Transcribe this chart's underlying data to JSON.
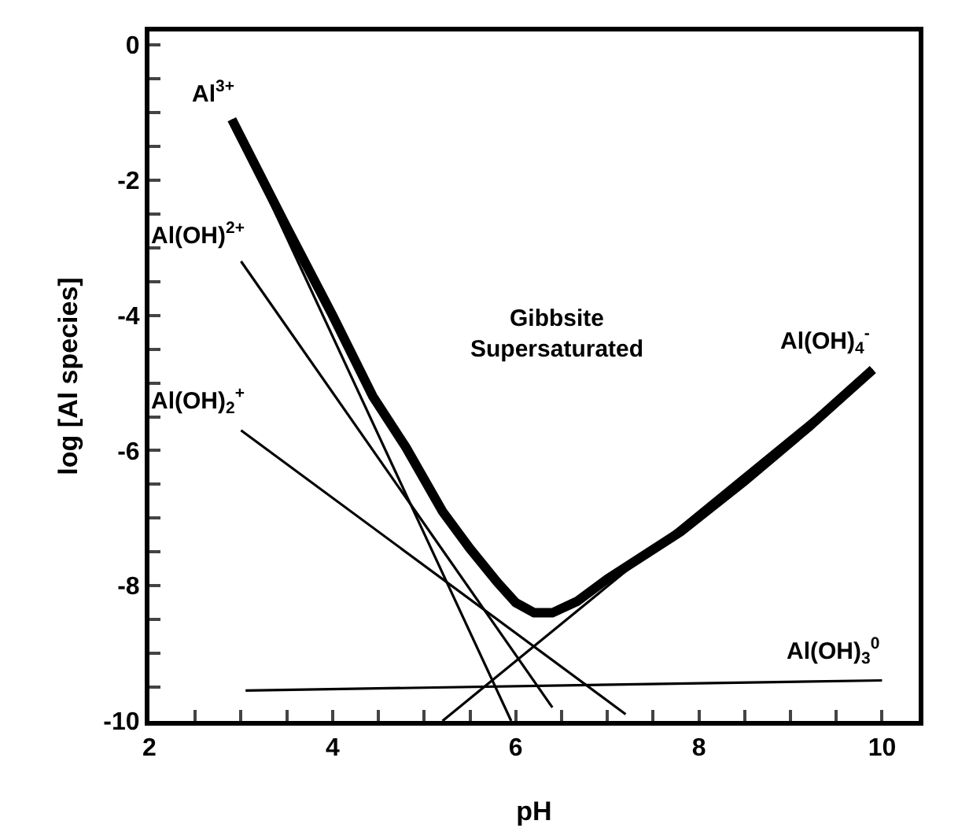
{
  "chart_data": {
    "type": "line",
    "xlabel": "pH",
    "ylabel": "log [Al species]",
    "xlim": [
      2,
      10.4
    ],
    "ylim": [
      -10,
      0.2
    ],
    "xticks": [
      2,
      {
        "value": 2.5,
        "label": null
      },
      {
        "value": 3,
        "label": null
      },
      {
        "value": 3.5,
        "label": null
      },
      4,
      {
        "value": 4.5,
        "label": null
      },
      {
        "value": 5,
        "label": null
      },
      {
        "value": 5.5,
        "label": null
      },
      6,
      {
        "value": 6.5,
        "label": null
      },
      {
        "value": 7,
        "label": null
      },
      {
        "value": 7.5,
        "label": null
      },
      8,
      {
        "value": 8.5,
        "label": null
      },
      {
        "value": 9,
        "label": null
      },
      {
        "value": 9.5,
        "label": null
      },
      10
    ],
    "yticks": [
      -10,
      {
        "value": -9.5,
        "label": null
      },
      {
        "value": -9,
        "label": null
      },
      {
        "value": -8.5,
        "label": null
      },
      -8,
      {
        "value": -7.5,
        "label": null
      },
      {
        "value": -7,
        "label": null
      },
      {
        "value": -6.5,
        "label": null
      },
      -6,
      {
        "value": -5.5,
        "label": null
      },
      {
        "value": -5,
        "label": null
      },
      {
        "value": -4.5,
        "label": null
      },
      -4,
      {
        "value": -3.5,
        "label": null
      },
      {
        "value": -3,
        "label": null
      },
      {
        "value": -2.5,
        "label": null
      },
      -2,
      {
        "value": -1.5,
        "label": null
      },
      {
        "value": -1,
        "label": null
      },
      {
        "value": -0.5,
        "label": null
      },
      0
    ],
    "grid": false,
    "legend": false,
    "marker": "none",
    "line_style": "solid",
    "series": [
      {
        "color": "#000000",
        "x": [
          2.9,
          3.5,
          4,
          4.44,
          4.8,
          5.2,
          5.5,
          5.8,
          6.0,
          6.2,
          6.4,
          6.67,
          7,
          7.8,
          8.5,
          9.2,
          9.9
        ],
        "values": [
          -1.1,
          -2.7,
          -4.0,
          -5.2,
          -5.95,
          -6.9,
          -7.45,
          -7.95,
          -8.25,
          -8.4,
          -8.4,
          -8.23,
          -7.9,
          -7.2,
          -6.45,
          -5.65,
          -4.8
        ]
      },
      {
        "name": "Al$^{3+}$",
        "color": "#000000",
        "x": [
          2.9,
          5.95
        ],
        "values": [
          -1.1,
          -10
        ]
      },
      {
        "name": "Al(OH)$^{2+}$",
        "color": "#000000",
        "x": [
          3.0,
          6.4
        ],
        "values": [
          -3.2,
          -9.8
        ]
      },
      {
        "name": "Al(OH)$_{2}$$^{+}$",
        "color": "#000000",
        "x": [
          3.0,
          7.2
        ],
        "values": [
          -5.7,
          -9.9
        ]
      },
      {
        "name": "Al(OH)$_{3}$$^{0}$",
        "color": "#000000",
        "x": [
          3.05,
          10
        ],
        "values": [
          -9.55,
          -9.4
        ]
      },
      {
        "name": "Al(OH)$_{4}$$^{-}$",
        "color": "#000000",
        "x": [
          5.2,
          9.9
        ],
        "values": [
          -10,
          -4.8
        ]
      }
    ],
    "annotations": [
      "Gibbsite\nSupersaturated"
    ]
  }
}
